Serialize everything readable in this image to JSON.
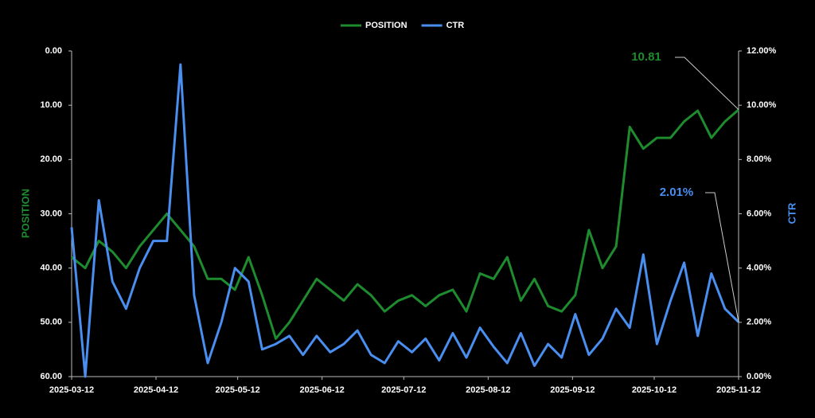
{
  "chart_data": {
    "type": "line",
    "x_label": null,
    "y_label": "POSITION",
    "y2_label": "CTR",
    "x": [
      "2025-03-12",
      "2025-03-17",
      "2025-03-22",
      "2025-03-27",
      "2025-04-01",
      "2025-04-06",
      "2025-04-11",
      "2025-04-16",
      "2025-04-21",
      "2025-04-26",
      "2025-05-01",
      "2025-05-06",
      "2025-05-11",
      "2025-05-16",
      "2025-05-21",
      "2025-05-26",
      "2025-05-31",
      "2025-06-05",
      "2025-06-10",
      "2025-06-15",
      "2025-06-20",
      "2025-06-25",
      "2025-06-30",
      "2025-07-05",
      "2025-07-10",
      "2025-07-15",
      "2025-07-20",
      "2025-07-25",
      "2025-07-30",
      "2025-08-04",
      "2025-08-09",
      "2025-08-14",
      "2025-08-19",
      "2025-08-24",
      "2025-08-29",
      "2025-09-03",
      "2025-09-08",
      "2025-09-13",
      "2025-09-18",
      "2025-09-23",
      "2025-09-28",
      "2025-10-03",
      "2025-10-08",
      "2025-10-13",
      "2025-10-18",
      "2025-10-23",
      "2025-10-28",
      "2025-11-02",
      "2025-11-07",
      "2025-11-12"
    ],
    "series": [
      {
        "name": "POSITION",
        "color": "#1e8c2e",
        "axis": "y",
        "end_label": "10.81",
        "values": [
          38,
          40,
          35,
          37,
          40,
          36,
          33,
          30,
          33,
          36,
          42,
          42,
          44,
          38,
          45,
          53,
          50,
          46,
          42,
          44,
          46,
          43,
          45,
          48,
          46,
          45,
          47,
          45,
          44,
          48,
          41,
          42,
          38,
          46,
          42,
          47,
          48,
          45,
          33,
          40,
          36,
          14,
          18,
          16,
          16,
          13,
          11,
          16,
          13,
          10.81
        ]
      },
      {
        "name": "CTR",
        "color": "#4a8ef0",
        "axis": "y2",
        "end_label": "2.01%",
        "values": [
          5.5,
          0,
          6.5,
          3.5,
          2.5,
          4,
          5,
          5,
          11.5,
          3,
          0.5,
          2,
          4,
          3.5,
          1,
          1.2,
          1.5,
          0.8,
          1.5,
          0.9,
          1.2,
          1.7,
          0.8,
          0.5,
          1.3,
          0.9,
          1.4,
          0.6,
          1.6,
          0.7,
          1.8,
          1.1,
          0.5,
          1.6,
          0.4,
          1.2,
          0.7,
          2.3,
          0.8,
          1.4,
          2.5,
          1.8,
          4.5,
          1.2,
          2.8,
          4.2,
          1.5,
          3.8,
          2.5,
          2.01
        ]
      }
    ],
    "xlim": [
      "2025-03-12",
      "2025-11-12"
    ],
    "xticks": [
      "2025-03-12",
      "2025-04-12",
      "2025-05-12",
      "2025-06-12",
      "2025-07-12",
      "2025-08-12",
      "2025-09-12",
      "2025-10-12",
      "2025-11-12"
    ],
    "ylim": [
      60,
      0
    ],
    "yticks": [
      {
        "value": 0,
        "label": "0.00"
      },
      {
        "value": 10,
        "label": "10.00"
      },
      {
        "value": 20,
        "label": "20.00"
      },
      {
        "value": 30,
        "label": "30.00"
      },
      {
        "value": 40,
        "label": "40.00"
      },
      {
        "value": 50,
        "label": "50.00"
      },
      {
        "value": 60,
        "label": "60.00"
      }
    ],
    "y2lim": [
      0,
      12
    ],
    "y2ticks": [
      {
        "value": 0,
        "label": "0.00%"
      },
      {
        "value": 2,
        "label": "2.00%"
      },
      {
        "value": 4,
        "label": "4.00%"
      },
      {
        "value": 6,
        "label": "6.00%"
      },
      {
        "value": 8,
        "label": "8.00%"
      },
      {
        "value": 10,
        "label": "10.00%"
      },
      {
        "value": 12,
        "label": "12.00%"
      }
    ],
    "legend": "top"
  }
}
